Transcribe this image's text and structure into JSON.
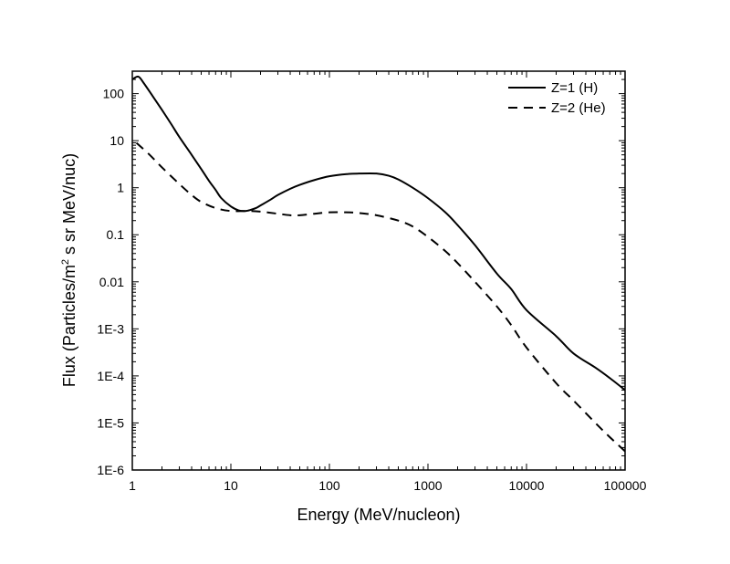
{
  "chart_data": {
    "type": "line",
    "xlabel": "Energy (MeV/nucleon)",
    "ylabel_parts": [
      "Flux (Particles/m",
      "2",
      " s sr MeV/nuc)"
    ],
    "x_scale": "log",
    "y_scale": "log",
    "xlim": [
      1,
      100000
    ],
    "ylim": [
      1e-06,
      300
    ],
    "x_ticks": [
      {
        "value": 1,
        "label": "1"
      },
      {
        "value": 10,
        "label": "10"
      },
      {
        "value": 100,
        "label": "100"
      },
      {
        "value": 1000,
        "label": "1000"
      },
      {
        "value": 10000,
        "label": "10000"
      },
      {
        "value": 100000,
        "label": "100000"
      }
    ],
    "y_ticks": [
      {
        "value": 1e-06,
        "label": "1E-6"
      },
      {
        "value": 1e-05,
        "label": "1E-5"
      },
      {
        "value": 0.0001,
        "label": "1E-4"
      },
      {
        "value": 0.001,
        "label": "1E-3"
      },
      {
        "value": 0.01,
        "label": "0.01"
      },
      {
        "value": 0.1,
        "label": "0.1"
      },
      {
        "value": 1,
        "label": "1"
      },
      {
        "value": 10,
        "label": "10"
      },
      {
        "value": 100,
        "label": "100"
      }
    ],
    "grid": false,
    "legend_position": "top-right",
    "series": [
      {
        "name": "Z=1 (H)",
        "style": "solid",
        "color": "#000000",
        "x": [
          1,
          1.15,
          1.3,
          1.6,
          2,
          2.5,
          3,
          4,
          5,
          6,
          7,
          8,
          10,
          12,
          14,
          16,
          18,
          20,
          25,
          30,
          40,
          50,
          70,
          100,
          150,
          200,
          300,
          400,
          500,
          700,
          1000,
          1500,
          2000,
          3000,
          5000,
          7000,
          10000,
          20000,
          30000,
          50000,
          70000,
          100000
        ],
        "y": [
          200,
          230,
          170,
          90,
          45,
          22,
          12,
          5,
          2.5,
          1.4,
          0.9,
          0.6,
          0.4,
          0.33,
          0.32,
          0.34,
          0.37,
          0.42,
          0.55,
          0.7,
          0.95,
          1.15,
          1.45,
          1.75,
          1.95,
          2.0,
          2.0,
          1.8,
          1.5,
          1.0,
          0.6,
          0.3,
          0.16,
          0.06,
          0.015,
          0.007,
          0.0025,
          0.0007,
          0.0003,
          0.00015,
          9e-05,
          5e-05
        ]
      },
      {
        "name": "Z=2 (He)",
        "style": "dashed",
        "color": "#000000",
        "x": [
          1.1,
          1.5,
          2,
          3,
          4,
          5,
          7,
          10,
          15,
          20,
          30,
          40,
          50,
          70,
          100,
          150,
          200,
          300,
          500,
          700,
          1000,
          1500,
          2000,
          3000,
          5000,
          7000,
          10000,
          20000,
          30000,
          50000,
          70000,
          100000
        ],
        "y": [
          9,
          5,
          2.7,
          1.2,
          0.7,
          0.5,
          0.37,
          0.32,
          0.32,
          0.31,
          0.28,
          0.26,
          0.26,
          0.28,
          0.3,
          0.3,
          0.29,
          0.26,
          0.2,
          0.15,
          0.09,
          0.045,
          0.025,
          0.01,
          0.003,
          0.0012,
          0.0004,
          7e-05,
          3e-05,
          1e-05,
          5e-06,
          2.5e-06
        ]
      }
    ]
  }
}
